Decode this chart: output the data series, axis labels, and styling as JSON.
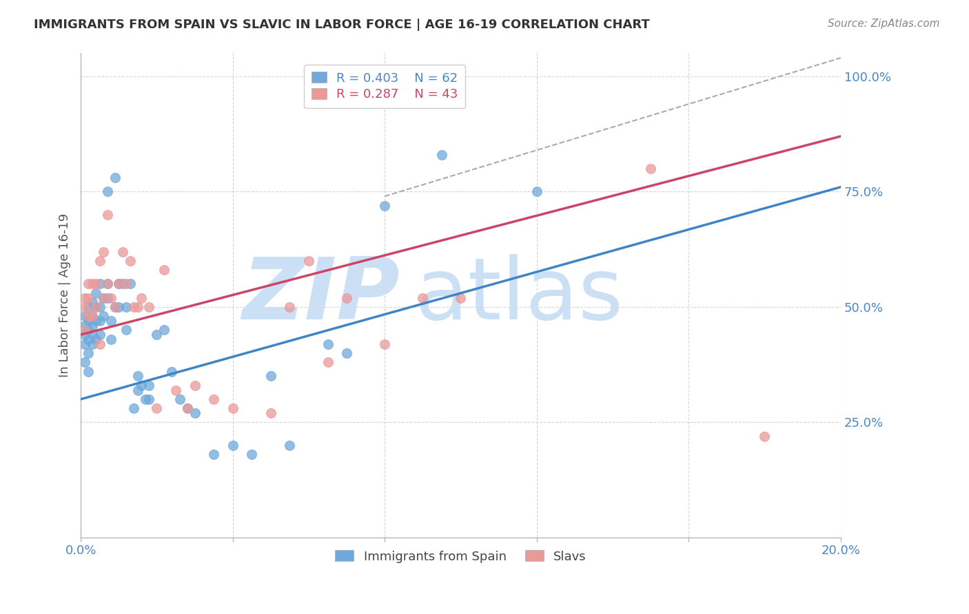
{
  "title": "IMMIGRANTS FROM SPAIN VS SLAVIC IN LABOR FORCE | AGE 16-19 CORRELATION CHART",
  "source": "Source: ZipAtlas.com",
  "ylabel": "In Labor Force | Age 16-19",
  "xlim": [
    0.0,
    0.2
  ],
  "ylim": [
    0.0,
    1.05
  ],
  "xticks": [
    0.0,
    0.04,
    0.08,
    0.12,
    0.16,
    0.2
  ],
  "xticklabels": [
    "0.0%",
    "",
    "",
    "",
    "",
    "20.0%"
  ],
  "yticks": [
    0.0,
    0.25,
    0.5,
    0.75,
    1.0
  ],
  "yticklabels": [
    "",
    "25.0%",
    "50.0%",
    "75.0%",
    "100.0%"
  ],
  "blue_color": "#6fa8dc",
  "pink_color": "#ea9999",
  "blue_line_color": "#3d85c8",
  "pink_line_color": "#cc4466",
  "axis_color": "#4a86c8",
  "grid_color": "#cccccc",
  "legend_R_blue": "0.403",
  "legend_N_blue": "62",
  "legend_R_pink": "0.287",
  "legend_N_pink": "43",
  "blue_scatter_x": [
    0.001,
    0.001,
    0.001,
    0.001,
    0.001,
    0.002,
    0.002,
    0.002,
    0.002,
    0.002,
    0.002,
    0.003,
    0.003,
    0.003,
    0.003,
    0.003,
    0.004,
    0.004,
    0.004,
    0.004,
    0.005,
    0.005,
    0.005,
    0.005,
    0.006,
    0.006,
    0.007,
    0.007,
    0.007,
    0.008,
    0.008,
    0.009,
    0.009,
    0.01,
    0.01,
    0.011,
    0.012,
    0.012,
    0.013,
    0.014,
    0.015,
    0.015,
    0.016,
    0.017,
    0.018,
    0.018,
    0.02,
    0.022,
    0.024,
    0.026,
    0.028,
    0.03,
    0.035,
    0.04,
    0.045,
    0.05,
    0.055,
    0.065,
    0.07,
    0.08,
    0.095,
    0.12
  ],
  "blue_scatter_y": [
    0.42,
    0.44,
    0.46,
    0.48,
    0.38,
    0.4,
    0.43,
    0.45,
    0.47,
    0.36,
    0.5,
    0.42,
    0.44,
    0.46,
    0.48,
    0.51,
    0.43,
    0.47,
    0.5,
    0.53,
    0.44,
    0.47,
    0.5,
    0.55,
    0.48,
    0.52,
    0.75,
    0.52,
    0.55,
    0.43,
    0.47,
    0.5,
    0.78,
    0.5,
    0.55,
    0.55,
    0.45,
    0.5,
    0.55,
    0.28,
    0.32,
    0.35,
    0.33,
    0.3,
    0.3,
    0.33,
    0.44,
    0.45,
    0.36,
    0.3,
    0.28,
    0.27,
    0.18,
    0.2,
    0.18,
    0.35,
    0.2,
    0.42,
    0.4,
    0.72,
    0.83,
    0.75
  ],
  "pink_scatter_x": [
    0.001,
    0.001,
    0.001,
    0.002,
    0.002,
    0.002,
    0.003,
    0.003,
    0.004,
    0.004,
    0.005,
    0.005,
    0.006,
    0.006,
    0.007,
    0.007,
    0.008,
    0.009,
    0.01,
    0.011,
    0.012,
    0.013,
    0.014,
    0.015,
    0.016,
    0.018,
    0.02,
    0.022,
    0.025,
    0.028,
    0.03,
    0.035,
    0.04,
    0.05,
    0.055,
    0.06,
    0.065,
    0.07,
    0.08,
    0.09,
    0.1,
    0.15,
    0.18
  ],
  "pink_scatter_y": [
    0.5,
    0.52,
    0.45,
    0.48,
    0.52,
    0.55,
    0.55,
    0.48,
    0.5,
    0.55,
    0.42,
    0.6,
    0.52,
    0.62,
    0.7,
    0.55,
    0.52,
    0.5,
    0.55,
    0.62,
    0.55,
    0.6,
    0.5,
    0.5,
    0.52,
    0.5,
    0.28,
    0.58,
    0.32,
    0.28,
    0.33,
    0.3,
    0.28,
    0.27,
    0.5,
    0.6,
    0.38,
    0.52,
    0.42,
    0.52,
    0.52,
    0.8,
    0.22
  ],
  "blue_line_x": [
    0.0,
    0.2
  ],
  "blue_line_y": [
    0.3,
    0.76
  ],
  "pink_line_x": [
    0.0,
    0.2
  ],
  "pink_line_y": [
    0.44,
    0.87
  ],
  "diag_line_x": [
    0.08,
    0.2
  ],
  "diag_line_y": [
    0.74,
    1.04
  ],
  "watermark_zip": "ZIP",
  "watermark_atlas": "atlas",
  "watermark_color": "#cce0f5"
}
